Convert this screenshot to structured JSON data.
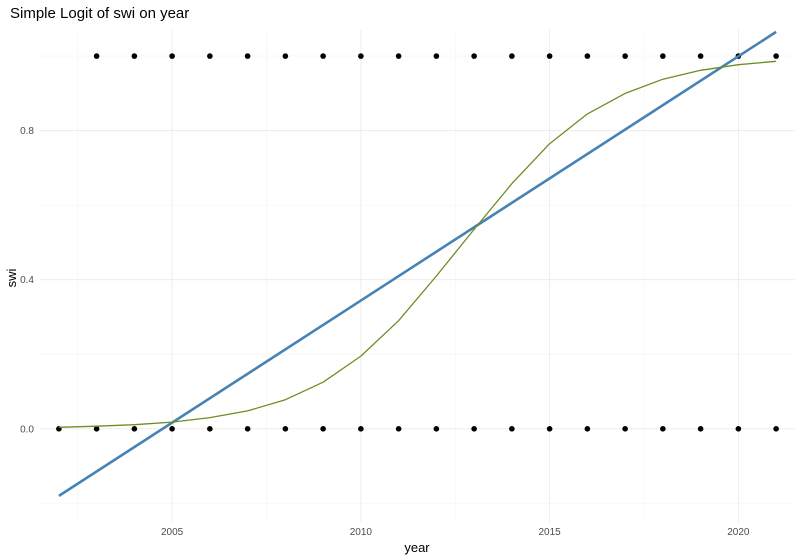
{
  "chart_data": {
    "type": "scatter",
    "title": "Simple Logit of swi on year",
    "xlabel": "year",
    "ylabel": "swi",
    "xlim": [
      2001.5,
      2021.5
    ],
    "ylim": [
      -0.25,
      1.07
    ],
    "x_ticks": [
      2005,
      2010,
      2015,
      2020
    ],
    "x_tick_labels": [
      "2005",
      "2010",
      "2015",
      "2020"
    ],
    "y_ticks": [
      0.0,
      0.4,
      0.8
    ],
    "y_tick_labels": [
      "0.0",
      "0.4",
      "0.8"
    ],
    "grid": true,
    "legend": "none",
    "series": [
      {
        "kind": "points",
        "color": "#000000",
        "x": [
          2002,
          2003,
          2004,
          2005,
          2006,
          2007,
          2008,
          2009,
          2010,
          2011,
          2012,
          2013,
          2014,
          2015,
          2016,
          2017,
          2018,
          2019,
          2020,
          2021,
          2003,
          2004,
          2005,
          2006,
          2007,
          2008,
          2009,
          2010,
          2011,
          2012,
          2013,
          2014,
          2015,
          2016,
          2017,
          2018,
          2019,
          2020,
          2021
        ],
        "y": [
          0,
          0,
          0,
          0,
          0,
          0,
          0,
          0,
          0,
          0,
          0,
          0,
          0,
          0,
          0,
          0,
          0,
          0,
          0,
          0,
          1,
          1,
          1,
          1,
          1,
          1,
          1,
          1,
          1,
          1,
          1,
          1,
          1,
          1,
          1,
          1,
          1,
          1,
          1
        ]
      },
      {
        "kind": "line",
        "color": "#4682b4",
        "x": [
          2002,
          2021
        ],
        "y": [
          -0.18,
          1.065
        ]
      },
      {
        "kind": "line",
        "color": "#6b8e23",
        "x": [
          2002,
          2003,
          2004,
          2005,
          2006,
          2007,
          2008,
          2009,
          2010,
          2011,
          2012,
          2013,
          2014,
          2015,
          2016,
          2017,
          2018,
          2019,
          2020,
          2021
        ],
        "y": [
          0.004,
          0.007,
          0.011,
          0.018,
          0.03,
          0.048,
          0.078,
          0.125,
          0.195,
          0.29,
          0.41,
          0.535,
          0.658,
          0.765,
          0.845,
          0.9,
          0.938,
          0.962,
          0.977,
          0.986
        ]
      }
    ]
  }
}
